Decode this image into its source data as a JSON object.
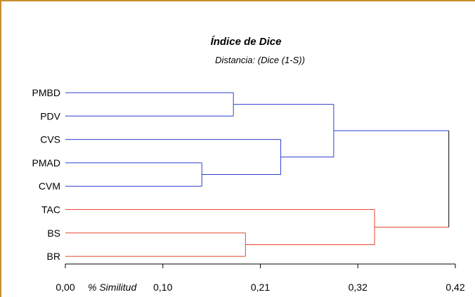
{
  "chart_data": {
    "type": "dendrogram",
    "title": "Índice de Dice",
    "subtitle": "Distancia: (Dice (1-S))",
    "xlabel": "% Similitud",
    "xlim": [
      0.0,
      0.42
    ],
    "ticks": [
      {
        "value": 0.0,
        "label": "0,00"
      },
      {
        "value": 0.105,
        "label": "0,10"
      },
      {
        "value": 0.21,
        "label": "0,21"
      },
      {
        "value": 0.315,
        "label": "0,32"
      },
      {
        "value": 0.42,
        "label": "0,42"
      }
    ],
    "leaves": [
      "PMBD",
      "PDV",
      "CVS",
      "PMAD",
      "CVM",
      "TAC",
      "BS",
      "BR"
    ],
    "merges": [
      {
        "id": "m1",
        "a": "PMAD",
        "b": "CVM",
        "height": 0.147,
        "color": "#2b3fcc"
      },
      {
        "id": "m2",
        "a": "PMBD",
        "b": "PDV",
        "height": 0.181,
        "color": "#2b3fcc"
      },
      {
        "id": "m3",
        "a": "BS",
        "b": "BR",
        "height": 0.194,
        "color": "#e8472e"
      },
      {
        "id": "m4",
        "a": "CVS",
        "b": "m1",
        "height": 0.232,
        "color": "#2b3fcc"
      },
      {
        "id": "m5",
        "a": "m2",
        "b": "m4",
        "height": 0.289,
        "color": "#2b3fcc"
      },
      {
        "id": "m6",
        "a": "TAC",
        "b": "m3",
        "height": 0.333,
        "color": "#e8472e"
      },
      {
        "id": "m7",
        "a": "m5",
        "b": "m6",
        "height": 0.413,
        "color": "#000000"
      }
    ],
    "grid": false,
    "colors": {
      "cluster_blue": "#2b3fcc",
      "cluster_red": "#e8472e",
      "root": "#000000",
      "frame": "#c8902c"
    }
  }
}
